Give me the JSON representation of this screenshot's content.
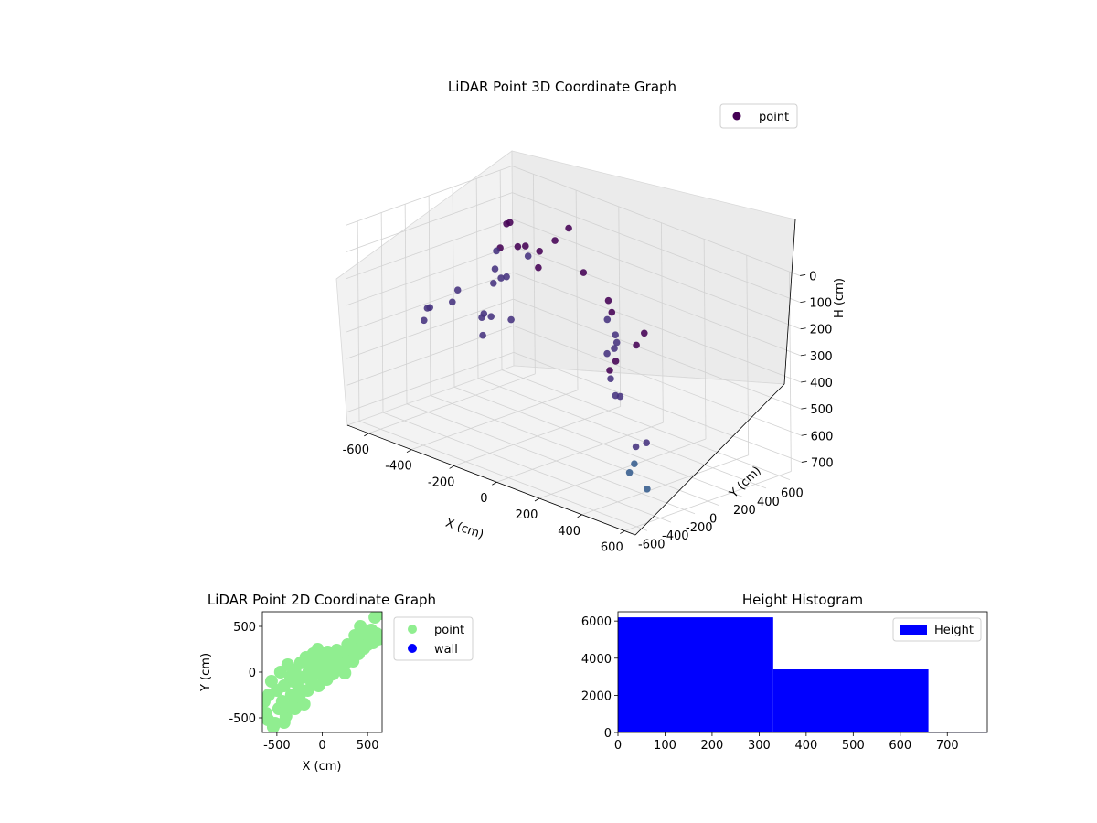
{
  "chart_data": [
    {
      "type": "scatter",
      "title": "LiDAR Point 3D Coordinate Graph",
      "xlabel": "X (cm)",
      "ylabel": "Y (cm)",
      "zlabel": "H (cm)",
      "xlim": [
        -700,
        650
      ],
      "ylim": [
        -700,
        700
      ],
      "zlim": [
        0,
        750
      ],
      "z_inverted": true,
      "x_ticks": [
        -600,
        -400,
        -200,
        0,
        200,
        400,
        600
      ],
      "y_ticks": [
        -600,
        -400,
        -200,
        0,
        200,
        400,
        600
      ],
      "z_ticks": [
        0,
        100,
        200,
        300,
        400,
        500,
        600,
        700
      ],
      "colormap": "viridis",
      "grid": true,
      "legend": {
        "placement": "top-right",
        "entries": [
          {
            "label": "point",
            "color": "#440154"
          }
        ]
      },
      "series": [
        {
          "name": "point",
          "points": [
            [
              -600,
              650,
              300
            ],
            [
              -600,
              500,
              150
            ],
            [
              -650,
              560,
              180
            ],
            [
              -620,
              420,
              250
            ],
            [
              -580,
              380,
              220
            ],
            [
              -560,
              300,
              280
            ],
            [
              -540,
              250,
              320
            ],
            [
              -500,
              450,
              200
            ],
            [
              -480,
              350,
              180
            ],
            [
              -450,
              200,
              260
            ],
            [
              -420,
              100,
              240
            ],
            [
              -400,
              520,
              160
            ],
            [
              -380,
              600,
              120
            ],
            [
              -350,
              300,
              150
            ],
            [
              -300,
              200,
              180
            ],
            [
              -300,
              -200,
              300
            ],
            [
              -250,
              -350,
              250
            ],
            [
              -200,
              -450,
              300
            ],
            [
              -150,
              -300,
              250
            ],
            [
              -400,
              -100,
              350
            ],
            [
              -650,
              100,
              400
            ],
            [
              -700,
              0,
              420
            ],
            [
              -700,
              -50,
              460
            ],
            [
              -680,
              200,
              380
            ],
            [
              -600,
              -200,
              360
            ],
            [
              -200,
              400,
              200
            ],
            [
              0,
              250,
              220
            ],
            [
              50,
              150,
              260
            ],
            [
              100,
              100,
              210
            ],
            [
              150,
              50,
              300
            ],
            [
              200,
              -50,
              240
            ],
            [
              250,
              -150,
              260
            ],
            [
              300,
              -300,
              240
            ],
            [
              400,
              -450,
              280
            ],
            [
              450,
              -500,
              320
            ],
            [
              500,
              -550,
              300
            ],
            [
              480,
              -600,
              200
            ],
            [
              520,
              -620,
              150
            ],
            [
              550,
              -500,
              100
            ],
            [
              560,
              -450,
              60
            ],
            [
              600,
              -600,
              450
            ],
            [
              650,
              -600,
              420
            ],
            [
              620,
              -650,
              500
            ],
            [
              580,
              -620,
              550
            ],
            [
              640,
              -580,
              600
            ]
          ]
        }
      ]
    },
    {
      "type": "scatter",
      "title": "LiDAR Point 2D Coordinate Graph",
      "xlabel": "X (cm)",
      "ylabel": "Y (cm)",
      "xlim": [
        -660,
        660
      ],
      "ylim": [
        -660,
        660
      ],
      "x_ticks": [
        -500,
        0,
        500
      ],
      "y_ticks": [
        -500,
        0,
        500
      ],
      "legend": {
        "placement": "outside-right",
        "entries": [
          {
            "label": "point",
            "color": "#90ee90"
          },
          {
            "label": "wall",
            "color": "#0000ff"
          }
        ]
      },
      "series": [
        {
          "name": "point",
          "color": "#90ee90",
          "points": [
            [
              -640,
              -320
            ],
            [
              -620,
              -450
            ],
            [
              -600,
              -520
            ],
            [
              -590,
              -250
            ],
            [
              -560,
              -100
            ],
            [
              -540,
              -600
            ],
            [
              -520,
              -560
            ],
            [
              -500,
              -200
            ],
            [
              -480,
              -400
            ],
            [
              -460,
              0
            ],
            [
              -440,
              -320
            ],
            [
              -420,
              -150
            ],
            [
              -400,
              -480
            ],
            [
              -380,
              80
            ],
            [
              -360,
              -380
            ],
            [
              -340,
              -250
            ],
            [
              -320,
              -100
            ],
            [
              -300,
              20
            ],
            [
              -280,
              -300
            ],
            [
              -260,
              -180
            ],
            [
              -240,
              100
            ],
            [
              -220,
              -60
            ],
            [
              -200,
              -350
            ],
            [
              -180,
              160
            ],
            [
              -160,
              -200
            ],
            [
              -140,
              50
            ],
            [
              -120,
              -100
            ],
            [
              -100,
              200
            ],
            [
              -80,
              -20
            ],
            [
              -60,
              120
            ],
            [
              -40,
              -150
            ],
            [
              -20,
              60
            ],
            [
              0,
              180
            ],
            [
              20,
              -50
            ],
            [
              40,
              100
            ],
            [
              60,
              220
            ],
            [
              80,
              20
            ],
            [
              100,
              150
            ],
            [
              120,
              -20
            ],
            [
              140,
              80
            ],
            [
              160,
              240
            ],
            [
              180,
              60
            ],
            [
              200,
              140
            ],
            [
              220,
              30
            ],
            [
              240,
              200
            ],
            [
              260,
              100
            ],
            [
              280,
              300
            ],
            [
              300,
              180
            ],
            [
              320,
              250
            ],
            [
              340,
              120
            ],
            [
              360,
              400
            ],
            [
              380,
              320
            ],
            [
              400,
              200
            ],
            [
              420,
              500
            ],
            [
              440,
              350
            ],
            [
              460,
              260
            ],
            [
              480,
              420
            ],
            [
              500,
              300
            ],
            [
              520,
              380
            ],
            [
              540,
              460
            ],
            [
              560,
              320
            ],
            [
              580,
              600
            ],
            [
              600,
              420
            ],
            [
              620,
              360
            ],
            [
              640,
              640
            ],
            [
              -300,
              -400
            ],
            [
              -250,
              -250
            ],
            [
              -350,
              -50
            ],
            [
              -150,
              0
            ],
            [
              -50,
              250
            ],
            [
              50,
              -80
            ],
            [
              150,
              180
            ],
            [
              250,
              -10
            ],
            [
              350,
              250
            ],
            [
              -420,
              -550
            ]
          ]
        }
      ]
    },
    {
      "type": "bar",
      "title": "Height Histogram",
      "xlim": [
        0,
        785
      ],
      "ylim": [
        0,
        6500
      ],
      "x_ticks": [
        0,
        100,
        200,
        300,
        400,
        500,
        600,
        700
      ],
      "y_ticks": [
        0,
        2000,
        4000,
        6000
      ],
      "legend": {
        "placement": "top-right",
        "entries": [
          {
            "label": "Height",
            "color": "#0000ff"
          }
        ]
      },
      "series": [
        {
          "name": "Height",
          "color": "#0000ff",
          "bins": [
            {
              "x0": 0,
              "x1": 330,
              "count": 6200
            },
            {
              "x0": 330,
              "x1": 660,
              "count": 3400
            },
            {
              "x0": 660,
              "x1": 785,
              "count": 40
            }
          ]
        }
      ]
    }
  ]
}
